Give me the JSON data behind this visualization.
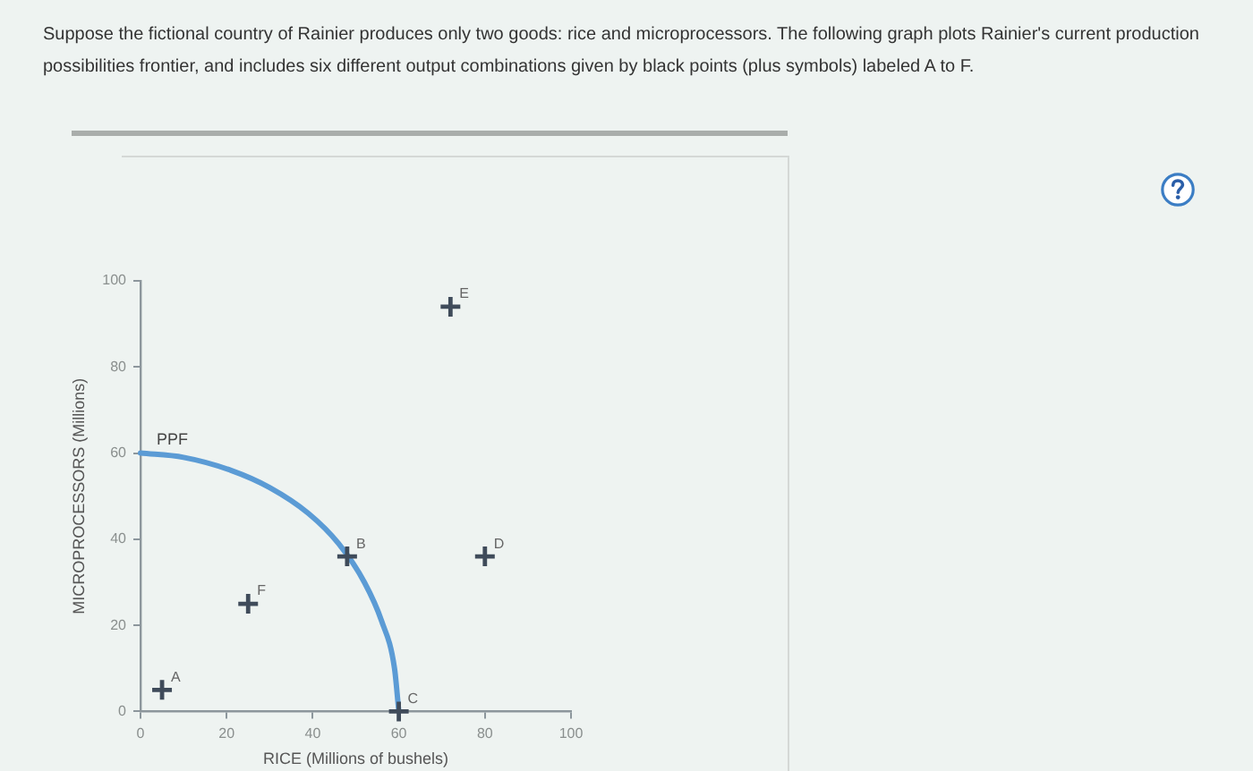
{
  "chart_data": {
    "type": "scatter",
    "title": "Suppose the fictional country of Rainier produces only two goods: rice and microprocessors. The following graph plots Rainier's current production possibilities frontier, and includes six different output combinations given by black points (plus symbols) labeled A to F.",
    "xlabel": "RICE (Millions of bushels)",
    "ylabel": "MICROPROCESSORS (Millions)",
    "xlim": [
      0,
      100
    ],
    "ylim": [
      0,
      100
    ],
    "xticks": [
      0,
      20,
      40,
      60,
      80,
      100
    ],
    "yticks": [
      0,
      20,
      40,
      60,
      80,
      100
    ],
    "series": [
      {
        "type": "line",
        "name": "PPF",
        "color": "#5b9bd5",
        "marker": "none",
        "line_style": "solid",
        "x": [
          0,
          10,
          21,
          30,
          39,
          46,
          52,
          56,
          59,
          60
        ],
        "values": [
          60,
          59,
          56,
          52,
          46,
          39,
          30,
          21,
          10,
          0
        ]
      },
      {
        "color": "#3f4b5a",
        "marker": "cross",
        "x": [
          5,
          48,
          60,
          80,
          72,
          25
        ],
        "values": [
          5,
          36,
          0,
          36,
          94,
          25
        ]
      }
    ],
    "annotations": [
      {
        "text": "A",
        "x": 5,
        "y": 5
      },
      {
        "text": "B",
        "x": 48,
        "y": 36
      },
      {
        "text": "C",
        "x": 60,
        "y": 0
      },
      {
        "text": "D",
        "x": 80,
        "y": 36
      },
      {
        "text": "E",
        "x": 72,
        "y": 94
      },
      {
        "text": "F",
        "x": 25,
        "y": 25
      }
    ]
  }
}
